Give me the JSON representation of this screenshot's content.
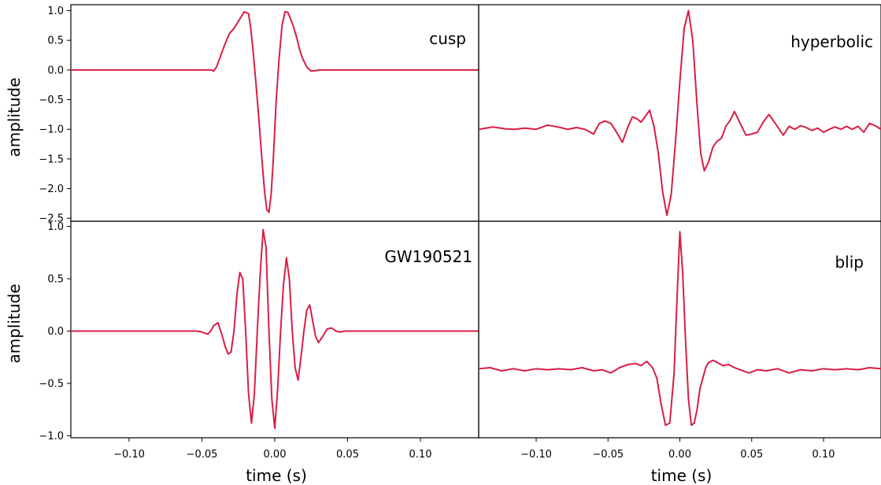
{
  "chart_data": [
    {
      "type": "line",
      "panel_label": "cusp",
      "ylabel": "amplitude",
      "xlabel": "",
      "xlim": [
        -0.14,
        0.14
      ],
      "ylim": [
        -2.55,
        1.1
      ],
      "yticks": [
        1.0,
        0.5,
        0.0,
        -0.5,
        -1.0,
        -1.5,
        -2.0,
        -2.5
      ],
      "ytick_labels": [
        "1.0",
        "0.5",
        "0.0",
        "−0.5",
        "−1.0",
        "−1.5",
        "−2.0",
        "−2.5"
      ],
      "xticks": [],
      "xtick_labels": [],
      "series": [
        {
          "color": "#d81e45",
          "x": [
            -0.14,
            -0.0435,
            -0.042,
            -0.04,
            -0.037,
            -0.034,
            -0.031,
            -0.028,
            -0.025,
            -0.021,
            -0.018,
            -0.0165,
            -0.015,
            -0.013,
            -0.011,
            -0.009,
            -0.007,
            -0.0055,
            -0.004,
            -0.0025,
            -0.001,
            0.0,
            0.001,
            0.003,
            0.005,
            0.007,
            0.009,
            0.011,
            0.013,
            0.015,
            0.017,
            0.019,
            0.022,
            0.025,
            0.028,
            0.031,
            0.034,
            0.037,
            0.04,
            0.043,
            0.046,
            0.14
          ],
          "y": [
            0.0,
            0.0,
            -0.02,
            0.05,
            0.25,
            0.45,
            0.62,
            0.7,
            0.82,
            0.98,
            0.95,
            0.7,
            0.35,
            -0.2,
            -0.8,
            -1.45,
            -2.05,
            -2.35,
            -2.4,
            -2.1,
            -1.5,
            -1.0,
            -0.5,
            0.2,
            0.75,
            0.98,
            0.97,
            0.85,
            0.72,
            0.55,
            0.35,
            0.2,
            0.05,
            -0.02,
            -0.01,
            0.0,
            0.0,
            0.0,
            0.0,
            0.0,
            0.0,
            0.0
          ]
        }
      ]
    },
    {
      "type": "line",
      "panel_label": "hyperbolic",
      "ylabel": "",
      "xlabel": "",
      "xlim": [
        -0.14,
        0.14
      ],
      "ylim": [
        -2.55,
        1.1
      ],
      "yticks": [],
      "ytick_labels": [],
      "xticks": [],
      "xtick_labels": [],
      "series": [
        {
          "color": "#d81e45",
          "x": [
            -0.14,
            -0.13,
            -0.122,
            -0.115,
            -0.108,
            -0.1,
            -0.092,
            -0.085,
            -0.078,
            -0.072,
            -0.066,
            -0.06,
            -0.056,
            -0.052,
            -0.048,
            -0.044,
            -0.04,
            -0.036,
            -0.033,
            -0.03,
            -0.027,
            -0.024,
            -0.021,
            -0.018,
            -0.015,
            -0.012,
            -0.009,
            -0.006,
            -0.003,
            0.0,
            0.003,
            0.006,
            0.009,
            0.012,
            0.0145,
            0.017,
            0.02,
            0.023,
            0.026,
            0.029,
            0.032,
            0.035,
            0.038,
            0.042,
            0.046,
            0.05,
            0.054,
            0.058,
            0.062,
            0.067,
            0.072,
            0.076,
            0.08,
            0.084,
            0.088,
            0.092,
            0.096,
            0.1,
            0.104,
            0.108,
            0.112,
            0.116,
            0.12,
            0.124,
            0.128,
            0.132,
            0.136,
            0.14
          ],
          "y": [
            -1.0,
            -0.96,
            -0.99,
            -1.0,
            -0.98,
            -1.0,
            -0.93,
            -0.96,
            -1.0,
            -0.97,
            -1.0,
            -1.08,
            -0.9,
            -0.86,
            -0.9,
            -1.05,
            -1.22,
            -0.95,
            -0.79,
            -0.82,
            -0.88,
            -0.78,
            -0.68,
            -0.95,
            -1.4,
            -2.05,
            -2.45,
            -2.1,
            -1.2,
            -0.2,
            0.7,
            1.0,
            0.5,
            -0.6,
            -1.4,
            -1.7,
            -1.55,
            -1.3,
            -1.2,
            -1.15,
            -0.95,
            -0.85,
            -0.7,
            -0.9,
            -1.1,
            -1.08,
            -1.05,
            -0.88,
            -0.75,
            -0.92,
            -1.1,
            -0.95,
            -1.0,
            -0.94,
            -0.97,
            -1.02,
            -0.98,
            -1.05,
            -1.0,
            -0.96,
            -1.0,
            -0.95,
            -1.0,
            -0.95,
            -1.05,
            -0.9,
            -0.94,
            -1.0
          ]
        }
      ]
    },
    {
      "type": "line",
      "panel_label": "GW190521",
      "ylabel": "amplitude",
      "xlabel": "time (s)",
      "xlim": [
        -0.14,
        0.14
      ],
      "ylim": [
        -1.02,
        1.05
      ],
      "yticks": [
        1.0,
        0.5,
        0.0,
        -0.5,
        -1.0
      ],
      "ytick_labels": [
        "1.0",
        "0.5",
        "0.0",
        "−0.5",
        "−1.0"
      ],
      "xticks": [
        -0.1,
        -0.05,
        0.0,
        0.05,
        0.1
      ],
      "xtick_labels": [
        "−0.10",
        "−0.05",
        "0.00",
        "0.05",
        "0.10"
      ],
      "series": [
        {
          "color": "#d81e45",
          "x": [
            -0.14,
            -0.06,
            -0.054,
            -0.051,
            -0.048,
            -0.046,
            -0.044,
            -0.042,
            -0.039,
            -0.036,
            -0.034,
            -0.032,
            -0.03,
            -0.028,
            -0.026,
            -0.024,
            -0.022,
            -0.02,
            -0.018,
            -0.016,
            -0.014,
            -0.012,
            -0.01,
            -0.008,
            -0.006,
            -0.004,
            -0.002,
            0.0,
            0.002,
            0.004,
            0.006,
            0.008,
            0.01,
            0.012,
            0.014,
            0.016,
            0.018,
            0.02,
            0.022,
            0.024,
            0.026,
            0.028,
            0.03,
            0.033,
            0.036,
            0.039,
            0.042,
            0.045,
            0.048,
            0.052,
            0.056,
            0.06,
            0.14
          ],
          "y": [
            0.0,
            0.0,
            0.0,
            -0.005,
            -0.02,
            -0.03,
            0.0,
            0.05,
            0.08,
            -0.05,
            -0.15,
            -0.22,
            -0.2,
            0.0,
            0.35,
            0.56,
            0.5,
            0.0,
            -0.6,
            -0.88,
            -0.6,
            0.0,
            0.55,
            0.97,
            0.8,
            0.0,
            -0.65,
            -0.93,
            -0.55,
            0.0,
            0.45,
            0.7,
            0.5,
            0.0,
            -0.35,
            -0.47,
            -0.25,
            0.0,
            0.2,
            0.25,
            0.1,
            -0.05,
            -0.11,
            -0.05,
            0.02,
            0.03,
            0.0,
            -0.01,
            0.0,
            0.0,
            0.0,
            0.0,
            0.0
          ]
        }
      ]
    },
    {
      "type": "line",
      "panel_label": "blip",
      "ylabel": "",
      "xlabel": "time (s)",
      "xlim": [
        -0.14,
        0.14
      ],
      "ylim": [
        -1.02,
        1.05
      ],
      "yticks": [],
      "ytick_labels": [],
      "xticks": [
        -0.1,
        -0.05,
        0.0,
        0.05,
        0.1
      ],
      "xtick_labels": [
        "−0.10",
        "−0.05",
        "0.00",
        "0.05",
        "0.10"
      ],
      "series": [
        {
          "color": "#d81e45",
          "x": [
            -0.14,
            -0.132,
            -0.124,
            -0.116,
            -0.108,
            -0.1,
            -0.092,
            -0.084,
            -0.076,
            -0.068,
            -0.06,
            -0.054,
            -0.048,
            -0.042,
            -0.036,
            -0.031,
            -0.027,
            -0.023,
            -0.019,
            -0.016,
            -0.013,
            -0.01,
            -0.007,
            -0.004,
            -0.002,
            0.0,
            0.002,
            0.004,
            0.006,
            0.008,
            0.01,
            0.012,
            0.014,
            0.016,
            0.018,
            0.02,
            0.023,
            0.026,
            0.03,
            0.034,
            0.038,
            0.042,
            0.048,
            0.054,
            0.06,
            0.068,
            0.076,
            0.084,
            0.092,
            0.1,
            0.108,
            0.116,
            0.124,
            0.132,
            0.14
          ],
          "y": [
            -0.36,
            -0.35,
            -0.38,
            -0.36,
            -0.38,
            -0.36,
            -0.37,
            -0.36,
            -0.37,
            -0.35,
            -0.38,
            -0.37,
            -0.4,
            -0.35,
            -0.32,
            -0.31,
            -0.33,
            -0.29,
            -0.35,
            -0.45,
            -0.7,
            -0.9,
            -0.88,
            -0.4,
            0.3,
            0.95,
            0.55,
            -0.1,
            -0.65,
            -0.9,
            -0.88,
            -0.75,
            -0.55,
            -0.45,
            -0.35,
            -0.3,
            -0.28,
            -0.3,
            -0.33,
            -0.32,
            -0.35,
            -0.37,
            -0.4,
            -0.37,
            -0.38,
            -0.36,
            -0.4,
            -0.37,
            -0.38,
            -0.36,
            -0.37,
            -0.36,
            -0.37,
            -0.35,
            -0.36
          ]
        }
      ]
    }
  ]
}
